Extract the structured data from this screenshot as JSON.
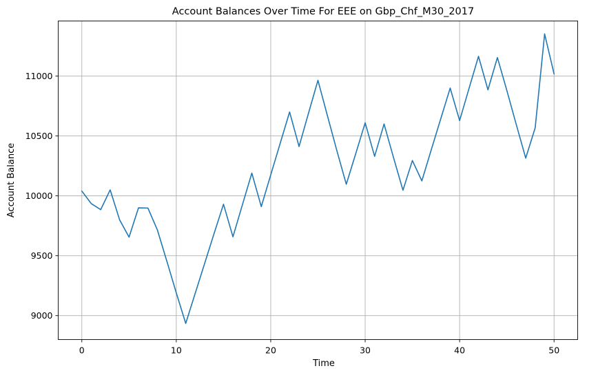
{
  "chart_data": {
    "type": "line",
    "title": "Account Balances Over Time For EEE on Gbp_Chf_M30_2017",
    "xlabel": "Time",
    "ylabel": "Account Balance",
    "xlim": [
      -2.5,
      52.5
    ],
    "ylim": [
      8800,
      11460
    ],
    "xticks": [
      0,
      10,
      20,
      30,
      40,
      50
    ],
    "yticks": [
      9000,
      9500,
      10000,
      10500,
      11000
    ],
    "grid": true,
    "line_color": "#1f77b4",
    "grid_color": "#b0b0b0",
    "series": [
      {
        "x": [
          0,
          1,
          2,
          3,
          4,
          5,
          6,
          7,
          8,
          9,
          10,
          11,
          12,
          13,
          14,
          15,
          16,
          17,
          18,
          19,
          20,
          21,
          22,
          23,
          24,
          25,
          26,
          27,
          28,
          29,
          30,
          31,
          32,
          33,
          34,
          35,
          36,
          37,
          38,
          39,
          40,
          41,
          42,
          43,
          44,
          45,
          46,
          47,
          48,
          49,
          50
        ],
        "values": [
          10040,
          9935,
          9885,
          10050,
          9800,
          9655,
          9900,
          9898,
          9715,
          9455,
          9190,
          8935,
          9185,
          9435,
          9685,
          9930,
          9658,
          9925,
          10190,
          9910,
          10175,
          10438,
          10700,
          10412,
          10690,
          10965,
          10670,
          10378,
          10097,
          10352,
          10610,
          10330,
          10600,
          10320,
          10047,
          10295,
          10125,
          10385,
          10643,
          10900,
          10628,
          10898,
          11165,
          10885,
          11155,
          10880,
          10595,
          10315,
          10568,
          11352,
          11018
        ]
      }
    ]
  }
}
